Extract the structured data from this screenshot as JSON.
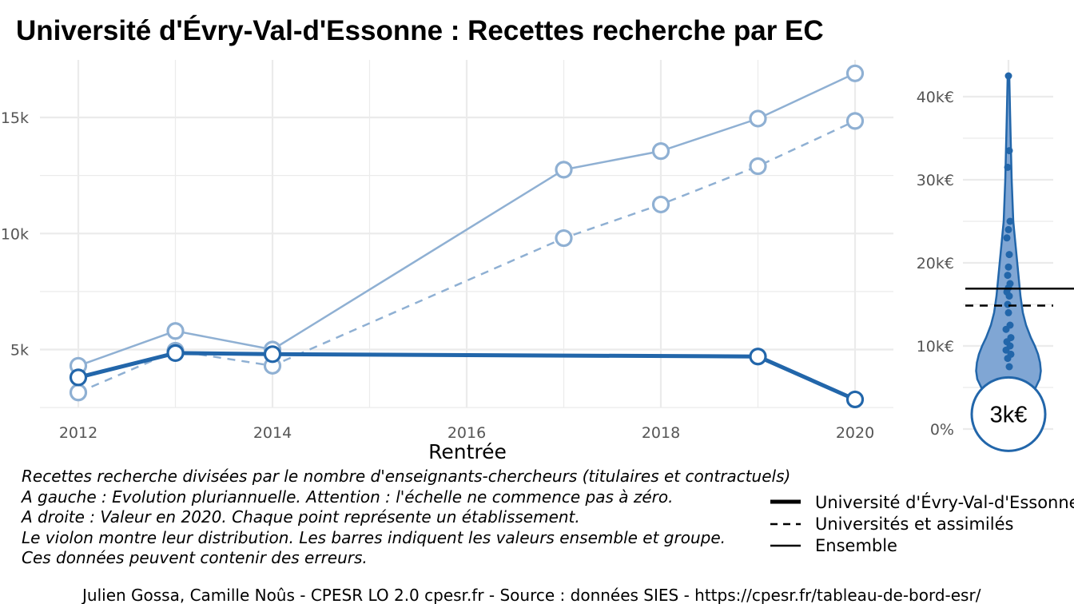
{
  "title": "Université d'Évry-Val-d'Essonne  :  Recettes recherche par EC",
  "colors": {
    "accent": "#2266aa",
    "light": "#8fb0d3",
    "grid": "#ebebeb",
    "violin_fill": "#80a6d4"
  },
  "chart_data": [
    {
      "type": "line",
      "xlabel": "Rentrée",
      "x_ticks": [
        "2012",
        "2014",
        "2016",
        "2018",
        "2020"
      ],
      "y_ticks": [
        "5k",
        "10k",
        "15k"
      ],
      "xlim": [
        2012,
        2020
      ],
      "ylim": [
        2500,
        17000
      ],
      "grid": true,
      "series": [
        {
          "name": "Université d'Évry-Val-d'Essonne",
          "style": "bold-solid",
          "color": "#2266aa",
          "x": [
            2012,
            2013,
            2014,
            2019,
            2020
          ],
          "y": [
            3800,
            4850,
            4800,
            4700,
            2850
          ]
        },
        {
          "name": "Universités et assimilés",
          "style": "dashed",
          "color": "#8fb0d3",
          "x": [
            2012,
            2013,
            2014,
            2017,
            2018,
            2019,
            2020
          ],
          "y": [
            3150,
            4950,
            4300,
            9800,
            11250,
            12900,
            14850
          ]
        },
        {
          "name": "Ensemble",
          "style": "solid",
          "color": "#8fb0d3",
          "x": [
            2012,
            2013,
            2014,
            2017,
            2018,
            2019,
            2020
          ],
          "y": [
            4300,
            5800,
            5000,
            12750,
            13550,
            14950,
            16900
          ]
        }
      ]
    },
    {
      "type": "violin",
      "y_ticks": [
        "0%",
        "10k€",
        "20k€",
        "30k€",
        "40k€"
      ],
      "ylim": [
        0,
        42500
      ],
      "points": [
        42500,
        33500,
        31500,
        25000,
        24000,
        23000,
        21000,
        19500,
        18500,
        17500,
        17000,
        16500,
        16000,
        15000,
        14000,
        12500,
        12000,
        11000,
        10500,
        10000,
        9500,
        9000,
        8500,
        7500
      ],
      "reference_lines": [
        {
          "name": "Ensemble",
          "value": 16900,
          "style": "solid"
        },
        {
          "name": "Universités et assimilés",
          "value": 14850,
          "style": "dashed"
        }
      ],
      "highlight_value": 2850,
      "highlight_label": "3k€"
    }
  ],
  "caption_lines": [
    "Recettes recherche divisées par le nombre d'enseignants-chercheurs (titulaires et contractuels)",
    "A gauche : Evolution pluriannuelle. Attention : l'échelle ne commence pas à zéro.",
    "A droite : Valeur en 2020. Chaque point représente un établissement.",
    "Le violon montre leur distribution. Les barres indiquent les valeurs ensemble et groupe.",
    "Ces données peuvent contenir des erreurs."
  ],
  "legend": [
    {
      "label": "Université d'Évry-Val-d'Essonne",
      "style": "bold"
    },
    {
      "label": "Universités et assimilés",
      "style": "dashed"
    },
    {
      "label": "Ensemble",
      "style": "solid"
    }
  ],
  "credit": "Julien Gossa, Camille Noûs - CPESR LO 2.0 cpesr.fr - Source : données SIES - https://cpesr.fr/tableau-de-bord-esr/"
}
